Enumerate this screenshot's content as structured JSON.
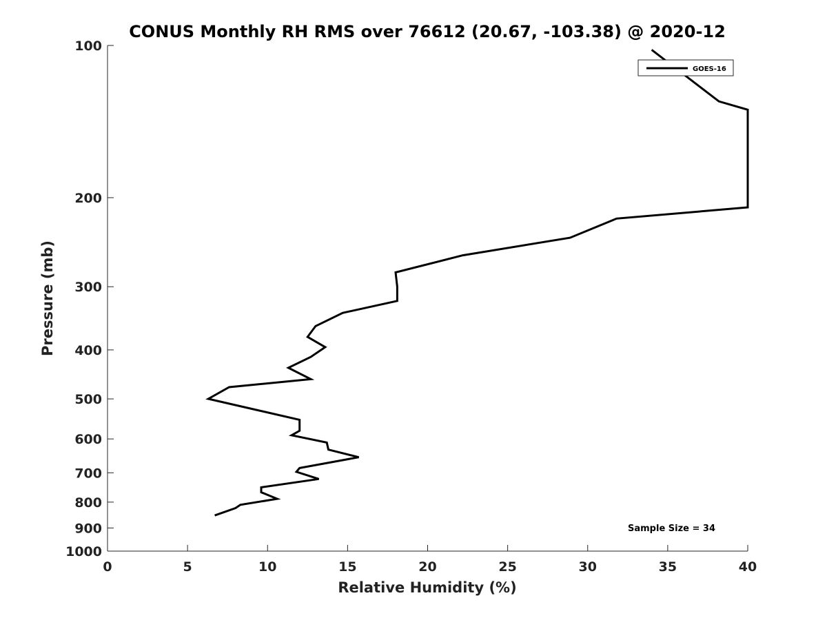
{
  "chart_data": {
    "type": "line",
    "title": "CONUS Monthly RH RMS over 76612 (20.67, -103.38) @ 2020-12",
    "xlabel": "Relative Humidity (%)",
    "ylabel": "Pressure (mb)",
    "xlim": [
      0,
      40
    ],
    "ylim": [
      1000,
      100
    ],
    "yscale": "log",
    "y_reversed": true,
    "xticks": [
      "0",
      "5",
      "10",
      "15",
      "20",
      "25",
      "30",
      "35",
      "40"
    ],
    "yticks": [
      "100",
      "200",
      "300",
      "400",
      "500",
      "600",
      "700",
      "800",
      "900",
      "1000"
    ],
    "grid": false,
    "legend": {
      "position": "top-right",
      "entries": [
        "GOES-16"
      ]
    },
    "annotation": "Sample Size = 34",
    "series": [
      {
        "name": "GOES-16",
        "color": "#000000",
        "x": [
          6.7,
          8.0,
          8.3,
          10.6,
          9.6,
          9.6,
          13.2,
          11.8,
          12.0,
          15.7,
          13.8,
          13.7,
          11.5,
          12.0,
          12.0,
          6.3,
          7.6,
          12.7,
          11.3,
          12.7,
          13.6,
          12.5,
          13.0,
          14.7,
          18.1,
          18.1,
          18.0,
          22.2,
          28.9,
          31.8,
          40.0,
          40.0,
          38.2,
          34.0
        ],
        "y": [
          850,
          822,
          810,
          788,
          765,
          748,
          720,
          697,
          685,
          652,
          630,
          610,
          590,
          578,
          550,
          500,
          474,
          457,
          434,
          413,
          395,
          377,
          359,
          338,
          320,
          300,
          281,
          260,
          240,
          220,
          209,
          134,
          129,
          102
        ]
      }
    ]
  }
}
